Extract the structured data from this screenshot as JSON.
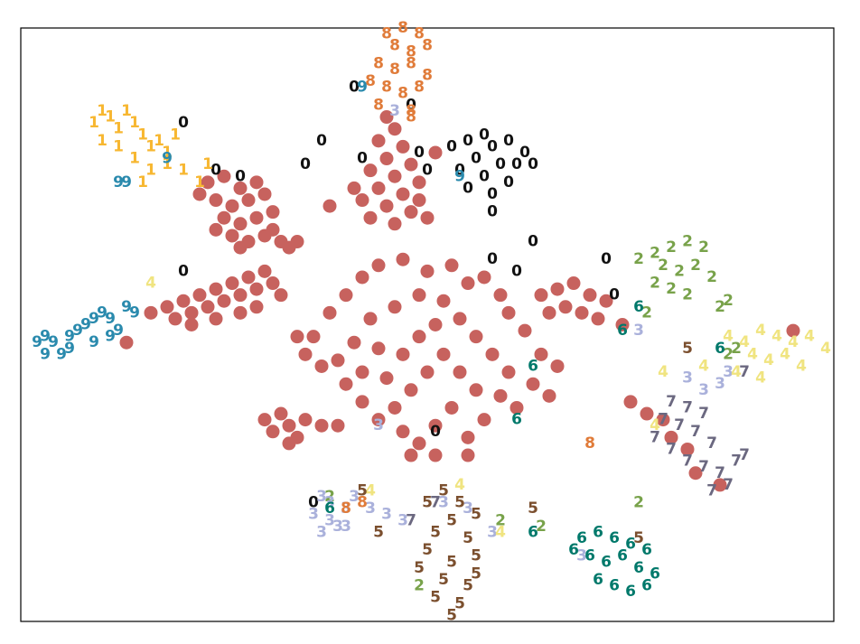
{
  "chart_data": {
    "type": "scatter",
    "xlim": [
      0,
      100
    ],
    "ylim": [
      0,
      100
    ],
    "grid": false,
    "series": [
      {
        "marker": "circle",
        "color": "#c7625e",
        "x": [
          23,
          25,
          27,
          24,
          26,
          28,
          30,
          25,
          27,
          29,
          31,
          24,
          26,
          28,
          30,
          32,
          33,
          22,
          29,
          31,
          27,
          34,
          16,
          18,
          19,
          20,
          21,
          22,
          23,
          24,
          25,
          26,
          27,
          28,
          29,
          30,
          31,
          32,
          24,
          27,
          29,
          13,
          21,
          45,
          46,
          44,
          47,
          45,
          48,
          43,
          46,
          49,
          44,
          47,
          45,
          48,
          43,
          46,
          50,
          42,
          49,
          38,
          41,
          51,
          36,
          38,
          40,
          42,
          44,
          47,
          50,
          53,
          55,
          57,
          59,
          60,
          62,
          64,
          66,
          63,
          60,
          58,
          56,
          54,
          52,
          49,
          46,
          43,
          41,
          39,
          37,
          40,
          42,
          44,
          46,
          48,
          50,
          52,
          54,
          56,
          53,
          51,
          49,
          47,
          45,
          47,
          49,
          51,
          44,
          42,
          55,
          57,
          59,
          61,
          34,
          35,
          65,
          48,
          64,
          66,
          68,
          70,
          72,
          67,
          69,
          71,
          74,
          65,
          30,
          31,
          32,
          33,
          34,
          35,
          37,
          39,
          33,
          75,
          77,
          79,
          80,
          82,
          83,
          86,
          95,
          55,
          51
        ],
        "y": [
          74,
          75,
          73,
          71,
          70,
          71,
          72,
          68,
          67,
          68,
          69,
          66,
          65,
          64,
          65,
          64,
          63,
          72,
          74,
          66,
          63,
          64,
          52,
          53,
          51,
          54,
          52,
          55,
          53,
          56,
          54,
          57,
          55,
          58,
          56,
          59,
          57,
          55,
          51,
          52,
          53,
          47,
          50,
          85,
          83,
          81,
          80,
          78,
          77,
          76,
          75,
          74,
          73,
          72,
          70,
          69,
          68,
          67,
          68,
          71,
          71,
          70,
          73,
          79,
          48,
          52,
          55,
          58,
          60,
          61,
          59,
          60,
          57,
          58,
          55,
          52,
          49,
          45,
          43,
          40,
          42,
          45,
          48,
          51,
          54,
          55,
          53,
          51,
          47,
          44,
          43,
          40,
          37,
          34,
          36,
          39,
          42,
          45,
          42,
          39,
          36,
          33,
          30,
          32,
          41,
          45,
          48,
          50,
          46,
          42,
          31,
          34,
          38,
          36,
          48,
          45,
          38,
          28,
          55,
          56,
          57,
          55,
          54,
          53,
          52,
          51,
          50,
          52,
          34,
          32,
          35,
          33,
          31,
          34,
          33,
          33,
          30,
          37,
          35,
          34,
          31,
          29,
          25,
          23,
          49,
          28,
          28
        ]
      },
      {
        "label": "0",
        "color": "#111111",
        "x": [
          53,
          55,
          57,
          58,
          60,
          62,
          56,
          59,
          61,
          54,
          57,
          60,
          63,
          55,
          58,
          41,
          48,
          20,
          37,
          35,
          42,
          24,
          27,
          49,
          50,
          58,
          63,
          58,
          61,
          20,
          72,
          73,
          51,
          36
        ],
        "y": [
          80,
          81,
          82,
          80,
          81,
          79,
          78,
          77,
          77,
          76,
          75,
          74,
          77,
          73,
          72,
          90,
          87,
          84,
          81,
          77,
          78,
          76,
          75,
          79,
          76,
          69,
          64,
          61,
          59,
          59,
          61,
          55,
          32,
          20
        ]
      },
      {
        "label": "1",
        "color": "#f7b731",
        "x": [
          9,
          10,
          11,
          12,
          13,
          14,
          15,
          16,
          17,
          18,
          19,
          10,
          12,
          14,
          16,
          18,
          20,
          15,
          23,
          22
        ],
        "y": [
          84,
          86,
          85,
          83,
          86,
          84,
          82,
          80,
          81,
          79,
          82,
          81,
          80,
          78,
          76,
          77,
          76,
          74,
          77,
          74
        ]
      },
      {
        "label": "2",
        "color": "#78a24a",
        "x": [
          76,
          78,
          80,
          82,
          84,
          79,
          81,
          83,
          85,
          78,
          80,
          82,
          86,
          87,
          77,
          88,
          87,
          76,
          59,
          38,
          64,
          49
        ],
        "y": [
          61,
          62,
          63,
          64,
          63,
          60,
          59,
          60,
          58,
          57,
          56,
          55,
          53,
          54,
          52,
          46,
          45,
          20,
          17,
          21,
          16,
          6
        ]
      },
      {
        "label": "3",
        "color": "#aab1db",
        "x": [
          37,
          38,
          40,
          41,
          36,
          38,
          40,
          43,
          45,
          47,
          37,
          39,
          52,
          55,
          58,
          82,
          84,
          86,
          87,
          44,
          76,
          46,
          69
        ],
        "y": [
          21,
          20,
          19,
          21,
          18,
          17,
          16,
          19,
          18,
          17,
          15,
          16,
          20,
          19,
          15,
          41,
          39,
          40,
          42,
          33,
          49,
          86,
          11
        ]
      },
      {
        "label": "4",
        "color": "#f0e480",
        "x": [
          87,
          89,
          91,
          93,
          95,
          97,
          99,
          90,
          92,
          94,
          96,
          88,
          91,
          84,
          79,
          16,
          43,
          54,
          59,
          78
        ],
        "y": [
          48,
          47,
          49,
          48,
          47,
          48,
          46,
          45,
          44,
          45,
          43,
          42,
          41,
          43,
          42,
          57,
          22,
          23,
          15,
          33
        ]
      },
      {
        "label": "5",
        "color": "#7b4f2e",
        "x": [
          50,
          52,
          54,
          56,
          53,
          51,
          55,
          50,
          53,
          56,
          52,
          55,
          51,
          54,
          53,
          56,
          49,
          63,
          44,
          42,
          82,
          76
        ],
        "y": [
          20,
          22,
          20,
          18,
          17,
          15,
          14,
          12,
          10,
          11,
          7,
          6,
          4,
          3,
          1,
          8,
          9,
          19,
          15,
          22,
          46,
          14
        ]
      },
      {
        "label": "6",
        "color": "#00796b",
        "x": [
          69,
          71,
          73,
          75,
          77,
          70,
          72,
          74,
          76,
          78,
          71,
          73,
          75,
          77,
          68,
          76,
          74,
          63,
          61,
          63,
          86,
          38
        ],
        "y": [
          14,
          15,
          14,
          13,
          12,
          11,
          10,
          11,
          9,
          8,
          7,
          6,
          5,
          6,
          12,
          53,
          49,
          43,
          34,
          15,
          46,
          19
        ]
      },
      {
        "label": "7",
        "color": "#6b6880",
        "x": [
          80,
          82,
          84,
          79,
          81,
          83,
          85,
          78,
          80,
          82,
          84,
          86,
          88,
          87,
          85,
          89,
          89,
          51,
          48
        ],
        "y": [
          37,
          36,
          35,
          34,
          33,
          32,
          30,
          31,
          29,
          27,
          26,
          25,
          27,
          23,
          22,
          28,
          42,
          20,
          17
        ]
      },
      {
        "label": "8",
        "color": "#e07b39",
        "x": [
          45,
          47,
          49,
          46,
          48,
          50,
          44,
          46,
          48,
          50,
          45,
          47,
          49,
          44,
          48,
          43,
          48,
          70,
          40,
          42
        ],
        "y": [
          99,
          100,
          99,
          97,
          96,
          97,
          94,
          93,
          94,
          92,
          90,
          89,
          90,
          87,
          86,
          91,
          85,
          30,
          19,
          20
        ]
      },
      {
        "label": "9",
        "color": "#2a8aad",
        "x": [
          2,
          3,
          4,
          5,
          6,
          7,
          8,
          9,
          10,
          11,
          12,
          13,
          3,
          6,
          9,
          11,
          14,
          12,
          13,
          18,
          54,
          42
        ],
        "y": [
          47,
          45,
          47,
          45,
          48,
          49,
          50,
          51,
          52,
          51,
          49,
          53,
          48,
          46,
          47,
          48,
          52,
          74,
          74,
          78,
          75,
          90
        ]
      }
    ]
  }
}
